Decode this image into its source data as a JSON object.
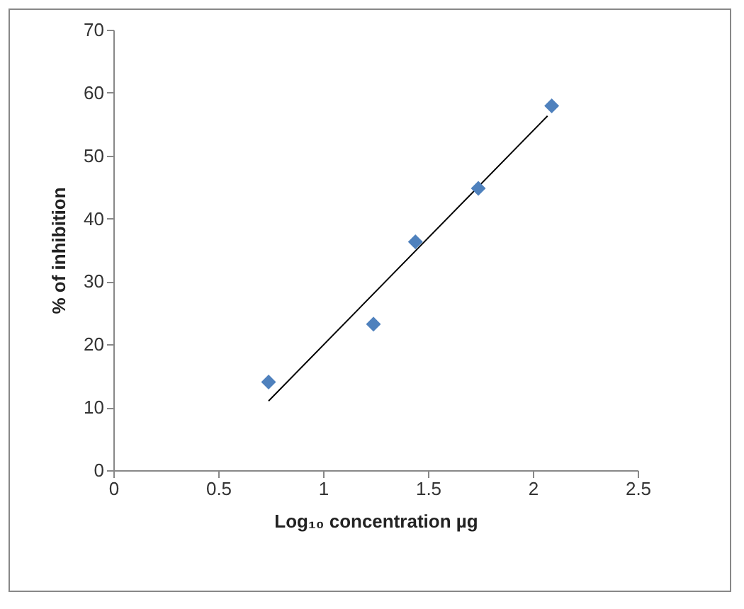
{
  "chart_data": {
    "type": "scatter",
    "xlabel": "Log₁₀ concentration  µg",
    "ylabel": "% of inhibition",
    "xlim": [
      0,
      2.5
    ],
    "xticks": [
      0,
      0.5,
      1,
      1.5,
      2,
      2.5
    ],
    "ylim": [
      0,
      70
    ],
    "yticks": [
      0,
      10,
      20,
      30,
      40,
      50,
      60,
      70
    ],
    "marker": "diamond",
    "series": [
      {
        "type": "line",
        "color": "#000000",
        "marker": "none",
        "line_style": "solid",
        "x": [
          0.74,
          2.07
        ],
        "values": [
          11,
          56.3
        ]
      },
      {
        "color": "#4f81bd",
        "x": [
          0.74,
          1.24,
          1.44,
          1.74,
          2.09
        ],
        "values": [
          14,
          23.2,
          36.3,
          44.8,
          57.9
        ]
      }
    ]
  }
}
